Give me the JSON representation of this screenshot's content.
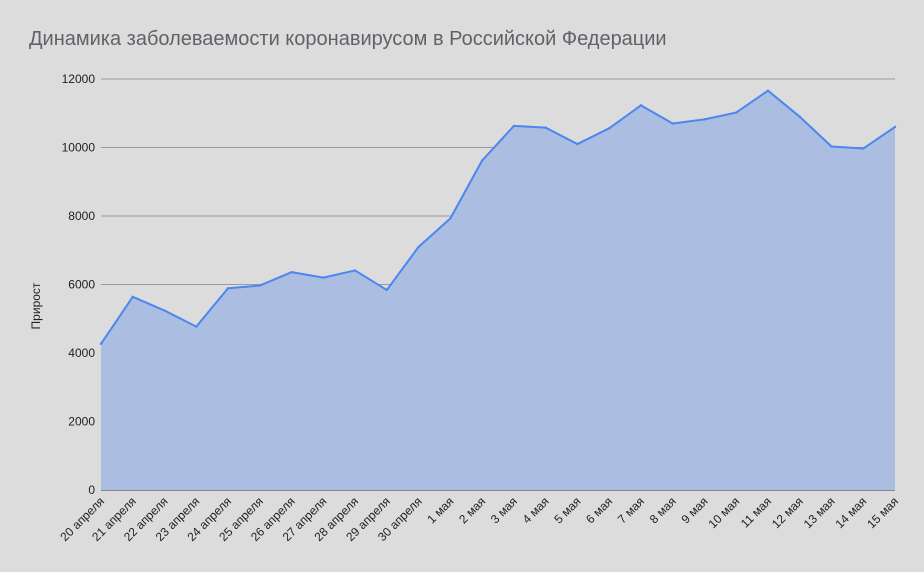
{
  "chart_data": {
    "type": "area",
    "title": "Динамика заболеваемости коронавирусом в Российской Федерации",
    "xlabel": "",
    "ylabel": "Прирост",
    "ylim": [
      0,
      12000
    ],
    "yticks": [
      0,
      2000,
      4000,
      6000,
      8000,
      10000,
      12000
    ],
    "grid": true,
    "legend": "none",
    "colors": {
      "line": "#4c86f0",
      "fill": "#abbde0",
      "grid": "#9a9a9a",
      "background": "#dcdcdc"
    },
    "categories": [
      "20 апреля",
      "21 апреля",
      "22 апреля",
      "23 апреля",
      "24 апреля",
      "25 апреля",
      "26 апреля",
      "27 апреля",
      "28 апреля",
      "29 апреля",
      "30 апреля",
      "1 мая",
      "2 мая",
      "3 мая",
      "4 мая",
      "5 мая",
      "6 мая",
      "7 мая",
      "8 мая",
      "9 мая",
      "10 мая",
      "11 мая",
      "12 мая",
      "13 мая",
      "14 мая",
      "15 мая"
    ],
    "series": [
      {
        "values": [
          4270,
          5640,
          5240,
          4770,
          5890,
          5970,
          6360,
          6200,
          6410,
          5840,
          7100,
          7930,
          9620,
          10630,
          10580,
          10100,
          10560,
          11230,
          10700,
          10820,
          11020,
          11660,
          10900,
          10030,
          9970,
          10600
        ]
      }
    ]
  }
}
